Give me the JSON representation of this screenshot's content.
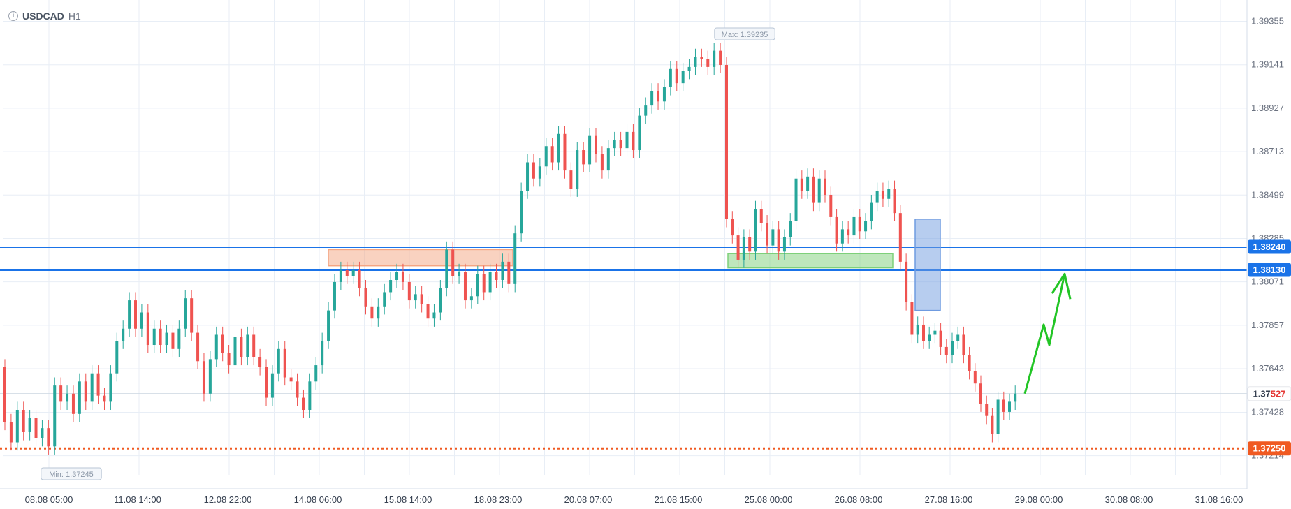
{
  "header": {
    "symbol": "USDCAD",
    "timeframe": "H1"
  },
  "max_label": "Max: 1.39235",
  "min_label": "Min: 1.37245",
  "price_tags": {
    "level_upper": {
      "text": "1.38240",
      "color": "#1a73e8"
    },
    "level_main": {
      "text": "1.38130",
      "color": "#1a73e8"
    },
    "current_prefix": "1.37",
    "current_suffix": "527",
    "target": {
      "text": "1.37250",
      "color": "#f05a22"
    }
  },
  "colors": {
    "up": "#26a69a",
    "down": "#ef5350",
    "grid": "#e8eef6",
    "axis_text": "#6b7280",
    "arrow": "#22c525"
  },
  "chart_data": {
    "type": "candlestick",
    "ylim": [
      1.3712,
      1.3946
    ],
    "y_ticks": [
      "1.39355",
      "1.39141",
      "1.38927",
      "1.38713",
      "1.38499",
      "1.38285",
      "1.38071",
      "1.37857",
      "1.37643",
      "1.37428",
      "1.37214"
    ],
    "x_tick_labels": [
      "08.08 05:00",
      "11.08 14:00",
      "12.08 22:00",
      "14.08 06:00",
      "15.08 14:00",
      "18.08 23:00",
      "20.08 07:00",
      "21.08 15:00",
      "25.08 00:00",
      "26.08 08:00",
      "27.08 16:00",
      "29.08 00:00",
      "30.08 08:00",
      "31.08 16:00"
    ],
    "series": [
      {
        "values": [
          [
            1.3765,
            1.3738
          ],
          [
            1.3738,
            1.3728
          ],
          [
            1.3728,
            1.3744
          ],
          [
            1.3744,
            1.3733
          ],
          [
            1.3733,
            1.374
          ],
          [
            1.374,
            1.373
          ],
          [
            1.373,
            1.3735
          ],
          [
            1.3735,
            1.3726
          ],
          [
            1.3726,
            1.3756
          ],
          [
            1.3756,
            1.3748
          ],
          [
            1.3748,
            1.3752
          ],
          [
            1.3752,
            1.3742
          ],
          [
            1.3742,
            1.3758
          ],
          [
            1.3758,
            1.3748
          ],
          [
            1.3748,
            1.3762
          ],
          [
            1.3762,
            1.3751
          ],
          [
            1.3751,
            1.3748
          ],
          [
            1.3748,
            1.3762
          ],
          [
            1.3762,
            1.3778
          ],
          [
            1.3778,
            1.3784
          ],
          [
            1.3784,
            1.3798
          ],
          [
            1.3798,
            1.3784
          ],
          [
            1.3784,
            1.3792
          ],
          [
            1.3792,
            1.3776
          ],
          [
            1.3776,
            1.3784
          ],
          [
            1.3784,
            1.3776
          ],
          [
            1.3776,
            1.3782
          ],
          [
            1.3782,
            1.3774
          ],
          [
            1.3774,
            1.3784
          ],
          [
            1.3784,
            1.3799
          ],
          [
            1.3799,
            1.3782
          ],
          [
            1.3782,
            1.3768
          ],
          [
            1.3768,
            1.3752
          ],
          [
            1.3752,
            1.3769
          ],
          [
            1.3769,
            1.3781
          ],
          [
            1.3781,
            1.3772
          ],
          [
            1.3772,
            1.3766
          ],
          [
            1.3766,
            1.378
          ],
          [
            1.378,
            1.377
          ],
          [
            1.377,
            1.3781
          ],
          [
            1.3781,
            1.377
          ],
          [
            1.377,
            1.3765
          ],
          [
            1.3765,
            1.375
          ],
          [
            1.375,
            1.3762
          ],
          [
            1.3762,
            1.3774
          ],
          [
            1.3774,
            1.376
          ],
          [
            1.376,
            1.3758
          ],
          [
            1.3758,
            1.375
          ],
          [
            1.375,
            1.3744
          ],
          [
            1.3744,
            1.3758
          ],
          [
            1.3758,
            1.3766
          ],
          [
            1.3766,
            1.3778
          ],
          [
            1.3778,
            1.3793
          ],
          [
            1.3793,
            1.3807
          ],
          [
            1.3807,
            1.3813
          ],
          [
            1.3813,
            1.381
          ],
          [
            1.381,
            1.3813
          ],
          [
            1.3813,
            1.3804
          ],
          [
            1.3804,
            1.3795
          ],
          [
            1.3795,
            1.3789
          ],
          [
            1.3789,
            1.3795
          ],
          [
            1.3795,
            1.3802
          ],
          [
            1.3802,
            1.3808
          ],
          [
            1.3808,
            1.3812
          ],
          [
            1.3812,
            1.3807
          ],
          [
            1.3807,
            1.3798
          ],
          [
            1.3798,
            1.3801
          ],
          [
            1.3801,
            1.3796
          ],
          [
            1.3796,
            1.3789
          ],
          [
            1.3789,
            1.3792
          ],
          [
            1.3792,
            1.3804
          ],
          [
            1.3804,
            1.3823
          ],
          [
            1.3823,
            1.381
          ],
          [
            1.381,
            1.3812
          ],
          [
            1.3812,
            1.3798
          ],
          [
            1.3798,
            1.38
          ],
          [
            1.38,
            1.3811
          ],
          [
            1.3811,
            1.3802
          ],
          [
            1.3802,
            1.3812
          ],
          [
            1.3812,
            1.3808
          ],
          [
            1.3808,
            1.3817
          ],
          [
            1.3817,
            1.3806
          ],
          [
            1.3806,
            1.3831
          ],
          [
            1.3831,
            1.3852
          ],
          [
            1.3852,
            1.3866
          ],
          [
            1.3866,
            1.3858
          ],
          [
            1.3858,
            1.3864
          ],
          [
            1.3864,
            1.3874
          ],
          [
            1.3874,
            1.3866
          ],
          [
            1.3866,
            1.388
          ],
          [
            1.388,
            1.3862
          ],
          [
            1.3862,
            1.3853
          ],
          [
            1.3853,
            1.3872
          ],
          [
            1.3872,
            1.3865
          ],
          [
            1.3865,
            1.3879
          ],
          [
            1.3879,
            1.387
          ],
          [
            1.387,
            1.3862
          ],
          [
            1.3862,
            1.3873
          ],
          [
            1.3873,
            1.3877
          ],
          [
            1.3877,
            1.3873
          ],
          [
            1.3873,
            1.3881
          ],
          [
            1.3881,
            1.3872
          ],
          [
            1.3872,
            1.3889
          ],
          [
            1.3889,
            1.3894
          ],
          [
            1.3894,
            1.3901
          ],
          [
            1.3901,
            1.3896
          ],
          [
            1.3896,
            1.3903
          ],
          [
            1.3903,
            1.3912
          ],
          [
            1.3912,
            1.3905
          ],
          [
            1.3905,
            1.3911
          ],
          [
            1.3911,
            1.3913
          ],
          [
            1.3913,
            1.3918
          ],
          [
            1.3918,
            1.3917
          ],
          [
            1.3917,
            1.3913
          ],
          [
            1.3913,
            1.3921
          ],
          [
            1.3921,
            1.3914
          ],
          [
            1.3914,
            1.3838
          ],
          [
            1.3838,
            1.383
          ],
          [
            1.383,
            1.3818
          ],
          [
            1.3818,
            1.3829
          ],
          [
            1.3829,
            1.3822
          ],
          [
            1.3822,
            1.3843
          ],
          [
            1.3843,
            1.3836
          ],
          [
            1.3836,
            1.3825
          ],
          [
            1.3825,
            1.3833
          ],
          [
            1.3833,
            1.3822
          ],
          [
            1.3822,
            1.3829
          ],
          [
            1.3829,
            1.3837
          ],
          [
            1.3837,
            1.3858
          ],
          [
            1.3858,
            1.3852
          ],
          [
            1.3852,
            1.3859
          ],
          [
            1.3859,
            1.3846
          ],
          [
            1.3846,
            1.3858
          ],
          [
            1.3858,
            1.385
          ],
          [
            1.385,
            1.3839
          ],
          [
            1.3839,
            1.3826
          ],
          [
            1.3826,
            1.3833
          ],
          [
            1.3833,
            1.383
          ],
          [
            1.383,
            1.3839
          ],
          [
            1.3839,
            1.3832
          ],
          [
            1.3832,
            1.3837
          ],
          [
            1.3837,
            1.3846
          ],
          [
            1.3846,
            1.3852
          ],
          [
            1.3852,
            1.3848
          ],
          [
            1.3848,
            1.3853
          ],
          [
            1.3853,
            1.3841
          ],
          [
            1.3841,
            1.3817
          ],
          [
            1.3817,
            1.3797
          ],
          [
            1.3797,
            1.3781
          ],
          [
            1.3781,
            1.3786
          ],
          [
            1.3786,
            1.3778
          ],
          [
            1.3778,
            1.3781
          ],
          [
            1.3781,
            1.3783
          ],
          [
            1.3783,
            1.3775
          ],
          [
            1.3775,
            1.3771
          ],
          [
            1.3771,
            1.3778
          ],
          [
            1.3778,
            1.3781
          ],
          [
            1.3781,
            1.3771
          ],
          [
            1.3771,
            1.3763
          ],
          [
            1.3763,
            1.3757
          ],
          [
            1.3757,
            1.3747
          ],
          [
            1.3747,
            1.3741
          ],
          [
            1.3741,
            1.3732
          ],
          [
            1.3732,
            1.3749
          ],
          [
            1.3749,
            1.3743
          ],
          [
            1.3743,
            1.3748
          ],
          [
            1.3748,
            1.3752
          ]
        ]
      }
    ],
    "levels": [
      1.3824,
      1.3813,
      1.3725
    ],
    "boxes": [
      {
        "color": "#f4a582",
        "x": [
          1,
          2
        ],
        "y": [
          1.3815,
          1.3823
        ]
      },
      {
        "color": "#7ed07a",
        "x": [
          3,
          4
        ],
        "y": [
          1.3814,
          1.3821
        ]
      },
      {
        "color": "#6f9be0",
        "x": [
          5,
          6
        ],
        "y": [
          1.3793,
          1.3838
        ]
      }
    ],
    "arrow_forecast": [
      1.3752,
      1.3786,
      1.3776,
      1.3811
    ]
  }
}
